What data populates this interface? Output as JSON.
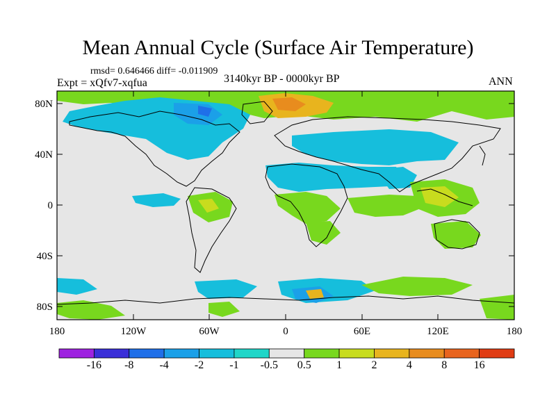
{
  "title": "Mean Annual Cycle (Surface Air Temperature)",
  "stats": "rmsd= 0.646466 diff= -0.011909",
  "experiment": "Expt = xQfv7-xqfua",
  "period": "3140kyr BP - 0000kyr BP",
  "season": "ANN",
  "axes": {
    "lat_ticks": [
      "80N",
      "40N",
      "0",
      "40S",
      "80S"
    ],
    "lon_ticks": [
      "180",
      "120W",
      "60W",
      "0",
      "60E",
      "120E",
      "180"
    ]
  },
  "colorbar": {
    "labels": [
      "-16",
      "-8",
      "-4",
      "-2",
      "-1",
      "-0.5",
      "0.5",
      "1",
      "2",
      "4",
      "8",
      "16"
    ],
    "colors": [
      "#9e22e0",
      "#3a2fd8",
      "#1f6fe8",
      "#1ba0e8",
      "#16bedc",
      "#20d6c8",
      "#e6e6e6",
      "#78d81e",
      "#c8dc1e",
      "#e8b41e",
      "#e88c1e",
      "#e8641e",
      "#e03c14"
    ]
  }
}
